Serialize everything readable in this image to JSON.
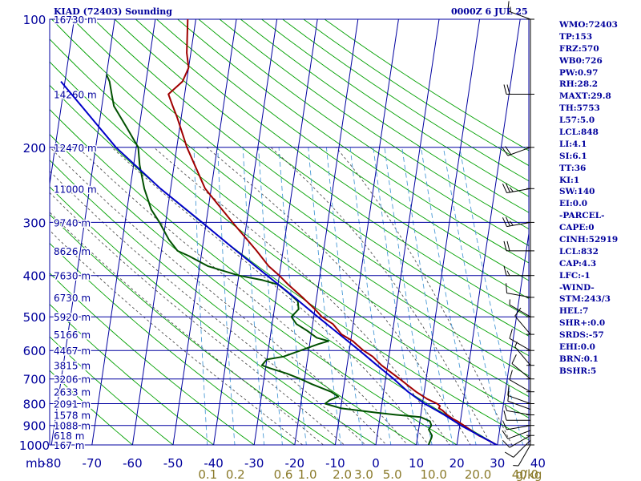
{
  "header": {
    "title": "KIAD (72403) Sounding",
    "datetime": "0000Z  6 JUL 25"
  },
  "indices": [
    "WMO:72403",
    "TP:153",
    "FRZ:570",
    "WB0:726",
    "PW:0.97",
    "RH:28.2",
    "MAXT:29.8",
    "TH:5753",
    "L57:5.0",
    "LCL:848",
    "LI:4.1",
    "SI:6.1",
    "TT:36",
    "KI:1",
    "SW:140",
    "EI:0.0",
    "-PARCEL-",
    "CAPE:0",
    "CINH:52919",
    "LCL:832",
    "CAP:4.3",
    "LFC:-1",
    "-WIND-",
    "STM:243/3",
    "HEL:7",
    "SHR+:0.0",
    "SRDS:-57",
    "EHI:0.0",
    "BRN:0.1",
    "BSHR:5"
  ],
  "colors": {
    "frame": "#0000a0",
    "isotherm": "#0000a0",
    "temperature": "#a00000",
    "dewpoint": "#005000",
    "parcel": "#0000c8",
    "dry_adiabat": "#00a000",
    "moist_adiabat": "#505050",
    "mixing_ratio": "#4a9ad6",
    "wind": "#000000"
  },
  "chart_data": {
    "type": "skew-t log-p",
    "xlabel": "mb",
    "temperature_ticks": [
      -80,
      -70,
      -60,
      -50,
      -40,
      -30,
      -20,
      -10,
      0,
      10,
      20,
      30,
      40
    ],
    "pressure_levels": [
      100,
      200,
      300,
      400,
      500,
      600,
      700,
      800,
      900,
      1000
    ],
    "height_labels": [
      {
        "p": 100,
        "label": "16730 m"
      },
      {
        "p": 150,
        "label": "14260 m"
      },
      {
        "p": 200,
        "label": "12470 m"
      },
      {
        "p": 250,
        "label": "11000 m"
      },
      {
        "p": 300,
        "label": "9740 m"
      },
      {
        "p": 350,
        "label": "8626 m"
      },
      {
        "p": 400,
        "label": "7630 m"
      },
      {
        "p": 450,
        "label": "6730 m"
      },
      {
        "p": 500,
        "label": "5920 m"
      },
      {
        "p": 550,
        "label": "5166 m"
      },
      {
        "p": 600,
        "label": "4467 m"
      },
      {
        "p": 650,
        "label": "3815 m"
      },
      {
        "p": 700,
        "label": "3206 m"
      },
      {
        "p": 750,
        "label": "2633 m"
      },
      {
        "p": 800,
        "label": "2091 m"
      },
      {
        "p": 850,
        "label": "1578 m"
      },
      {
        "p": 900,
        "label": "1088 m"
      },
      {
        "p": 950,
        "label": "618 m"
      },
      {
        "p": 1000,
        "label": "167 m"
      }
    ],
    "mixing_ratio_labels": [
      "0.1",
      "0.2",
      "0.6",
      "1.0",
      "2.0",
      "3.0",
      "5.0",
      "10.0",
      "20.0",
      "40.0",
      "g/kg"
    ],
    "series": [
      {
        "name": "temperature",
        "points": [
          [
            1000,
            29.8
          ],
          [
            980,
            28
          ],
          [
            970,
            27
          ],
          [
            960,
            26.1
          ],
          [
            950,
            25
          ],
          [
            930,
            23.4
          ],
          [
            925,
            23
          ],
          [
            900,
            21
          ],
          [
            880,
            19.3
          ],
          [
            870,
            18.2
          ],
          [
            850,
            16.5
          ],
          [
            830,
            15.2
          ],
          [
            820,
            14.2
          ],
          [
            810,
            14.4
          ],
          [
            800,
            13.6
          ],
          [
            780,
            11
          ],
          [
            750,
            8
          ],
          [
            700,
            3.5
          ],
          [
            650,
            -1.5
          ],
          [
            620,
            -4
          ],
          [
            600,
            -6.5
          ],
          [
            570,
            -9.5
          ],
          [
            550,
            -12.5
          ],
          [
            520,
            -15
          ],
          [
            500,
            -18
          ],
          [
            480,
            -20
          ],
          [
            450,
            -23.5
          ],
          [
            420,
            -27.5
          ],
          [
            400,
            -30
          ],
          [
            380,
            -33
          ],
          [
            350,
            -36.5
          ],
          [
            300,
            -43.5
          ],
          [
            250,
            -51.5
          ],
          [
            200,
            -57.5
          ],
          [
            170,
            -61
          ],
          [
            160,
            -62.5
          ],
          [
            150,
            -64
          ],
          [
            140,
            -61
          ],
          [
            130,
            -60
          ],
          [
            120,
            -61
          ],
          [
            100,
            -62
          ]
        ]
      },
      {
        "name": "dewpoint",
        "points": [
          [
            1000,
            13
          ],
          [
            960,
            13.5
          ],
          [
            950,
            13.5
          ],
          [
            920,
            12.5
          ],
          [
            900,
            13
          ],
          [
            880,
            12.5
          ],
          [
            860,
            10
          ],
          [
            850,
            4
          ],
          [
            840,
            -1
          ],
          [
            820,
            -10
          ],
          [
            800,
            -14
          ],
          [
            785,
            -13
          ],
          [
            770,
            -11
          ],
          [
            750,
            -13
          ],
          [
            720,
            -18
          ],
          [
            700,
            -21
          ],
          [
            680,
            -24.5
          ],
          [
            660,
            -29
          ],
          [
            650,
            -31
          ],
          [
            630,
            -30
          ],
          [
            620,
            -26
          ],
          [
            600,
            -22
          ],
          [
            580,
            -18
          ],
          [
            570,
            -15.5
          ],
          [
            560,
            -18.5
          ],
          [
            540,
            -21
          ],
          [
            520,
            -24
          ],
          [
            500,
            -25.5
          ],
          [
            480,
            -24
          ],
          [
            460,
            -24.5
          ],
          [
            440,
            -27
          ],
          [
            420,
            -30
          ],
          [
            410,
            -34
          ],
          [
            400,
            -40
          ],
          [
            380,
            -48
          ],
          [
            360,
            -53
          ],
          [
            350,
            -56
          ],
          [
            330,
            -58.5
          ],
          [
            300,
            -61.5
          ],
          [
            280,
            -64
          ],
          [
            250,
            -66.5
          ],
          [
            220,
            -68.5
          ],
          [
            200,
            -69.5
          ],
          [
            180,
            -73
          ],
          [
            160,
            -77
          ],
          [
            150,
            -78
          ],
          [
            140,
            -79
          ],
          [
            135,
            -80
          ]
        ]
      },
      {
        "name": "parcel",
        "points": [
          [
            1000,
            29.8
          ],
          [
            950,
            25.2
          ],
          [
            900,
            20.3
          ],
          [
            850,
            15.8
          ],
          [
            832,
            14
          ],
          [
            800,
            10.5
          ],
          [
            750,
            6
          ],
          [
            700,
            2
          ],
          [
            650,
            -2.6
          ],
          [
            600,
            -7.5
          ],
          [
            550,
            -13
          ],
          [
            500,
            -19
          ],
          [
            450,
            -25.5
          ],
          [
            400,
            -33
          ],
          [
            350,
            -41.5
          ],
          [
            300,
            -51
          ],
          [
            250,
            -62.5
          ],
          [
            200,
            -75
          ],
          [
            160,
            -85
          ],
          [
            140,
            -91
          ]
        ]
      }
    ],
    "wind_barbs": [
      {
        "p": 1000,
        "dir": 210,
        "kt": 5
      },
      {
        "p": 975,
        "dir": 225,
        "kt": 10
      },
      {
        "p": 950,
        "dir": 240,
        "kt": 10
      },
      {
        "p": 925,
        "dir": 250,
        "kt": 10
      },
      {
        "p": 900,
        "dir": 260,
        "kt": 10
      },
      {
        "p": 875,
        "dir": 270,
        "kt": 10
      },
      {
        "p": 850,
        "dir": 280,
        "kt": 5
      },
      {
        "p": 825,
        "dir": 290,
        "kt": 10
      },
      {
        "p": 800,
        "dir": 290,
        "kt": 10
      },
      {
        "p": 750,
        "dir": 300,
        "kt": 10
      },
      {
        "p": 700,
        "dir": 310,
        "kt": 10
      },
      {
        "p": 650,
        "dir": 320,
        "kt": 5
      },
      {
        "p": 600,
        "dir": 300,
        "kt": 10
      },
      {
        "p": 550,
        "dir": 320,
        "kt": 10
      },
      {
        "p": 500,
        "dir": 300,
        "kt": 5
      },
      {
        "p": 450,
        "dir": 280,
        "kt": 10
      },
      {
        "p": 400,
        "dir": 270,
        "kt": 15
      },
      {
        "p": 350,
        "dir": 270,
        "kt": 20
      },
      {
        "p": 300,
        "dir": 260,
        "kt": 25
      },
      {
        "p": 250,
        "dir": 260,
        "kt": 25
      },
      {
        "p": 200,
        "dir": 250,
        "kt": 20
      },
      {
        "p": 150,
        "dir": 270,
        "kt": 20
      },
      {
        "p": 100,
        "dir": 290,
        "kt": 15
      }
    ]
  }
}
